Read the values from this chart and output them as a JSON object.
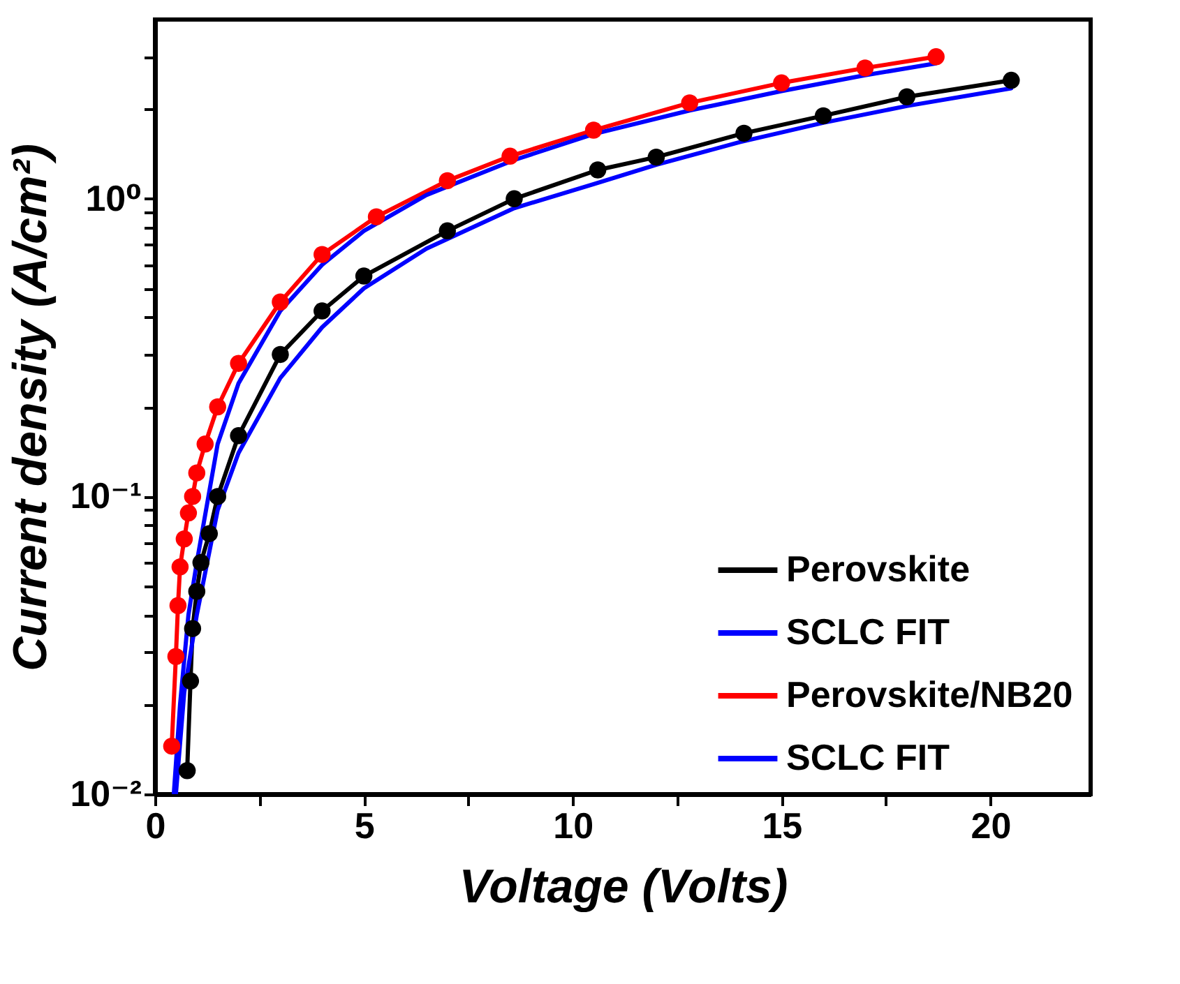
{
  "chart_data": {
    "type": "line",
    "xlabel": "Voltage (Volts)",
    "ylabel": "Current density (A/cm²)",
    "log": "y",
    "legend": "bottom right",
    "grid": false,
    "xlim": [
      0,
      22.4
    ],
    "xticks": [
      0,
      {
        "value": 2.5,
        "label": null
      },
      5,
      {
        "value": 7.5,
        "label": null
      },
      10,
      {
        "value": 12.5,
        "label": null
      },
      15,
      {
        "value": 17.5,
        "label": null
      },
      20
    ],
    "ylim": [
      0.01,
      4
    ],
    "yticks": [
      {
        "value": 0.01,
        "label": "10⁻²"
      },
      {
        "value": 0.02,
        "label": null
      },
      {
        "value": 0.03,
        "label": null
      },
      {
        "value": 0.04,
        "label": null
      },
      {
        "value": 0.05,
        "label": null
      },
      {
        "value": 0.06,
        "label": null
      },
      {
        "value": 0.07,
        "label": null
      },
      {
        "value": 0.08,
        "label": null
      },
      {
        "value": 0.09,
        "label": null
      },
      {
        "value": 0.1,
        "label": "10⁻¹"
      },
      {
        "value": 0.2,
        "label": null
      },
      {
        "value": 0.3,
        "label": null
      },
      {
        "value": 0.4,
        "label": null
      },
      {
        "value": 0.5,
        "label": null
      },
      {
        "value": 0.6,
        "label": null
      },
      {
        "value": 0.7,
        "label": null
      },
      {
        "value": 0.8,
        "label": null
      },
      {
        "value": 0.9,
        "label": null
      },
      {
        "value": 1,
        "label": "10⁰"
      },
      {
        "value": 2,
        "label": null
      },
      {
        "value": 3,
        "label": null
      }
    ],
    "series": [
      {
        "name": "Perovskite",
        "color": "#000000",
        "marker": "circle",
        "x": [
          0.77,
          0.85,
          0.9,
          1.0,
          1.1,
          1.3,
          1.5,
          2,
          3,
          4,
          5,
          7,
          8.6,
          10.6,
          12,
          14.1,
          16,
          18,
          20.5
        ],
        "values": [
          0.012,
          0.024,
          0.036,
          0.048,
          0.06,
          0.075,
          0.1,
          0.16,
          0.3,
          0.42,
          0.55,
          0.78,
          1.0,
          1.25,
          1.38,
          1.66,
          1.9,
          2.2,
          2.5
        ]
      },
      {
        "name": "SCLC FIT",
        "color": "#0000ff",
        "marker": "none",
        "x": [
          0.5,
          0.7,
          1.0,
          1.5,
          2,
          3,
          4,
          5,
          6.5,
          8.6,
          10.5,
          12,
          14,
          16,
          18,
          20.5
        ],
        "values": [
          0.01,
          0.022,
          0.04,
          0.09,
          0.14,
          0.25,
          0.37,
          0.5,
          0.68,
          0.93,
          1.12,
          1.3,
          1.55,
          1.8,
          2.05,
          2.35
        ]
      },
      {
        "name": "Perovskite/NB20",
        "color": "#ff0000",
        "marker": "circle",
        "x": [
          0.4,
          0.5,
          0.55,
          0.6,
          0.7,
          0.8,
          0.9,
          1.0,
          1.2,
          1.5,
          2,
          3,
          4,
          5.3,
          7,
          8.5,
          10.5,
          12.8,
          15,
          17,
          18.7
        ],
        "values": [
          0.0145,
          0.029,
          0.043,
          0.058,
          0.072,
          0.088,
          0.1,
          0.12,
          0.15,
          0.2,
          0.28,
          0.45,
          0.65,
          0.87,
          1.15,
          1.39,
          1.7,
          2.1,
          2.45,
          2.75,
          3.0
        ]
      },
      {
        "name": "SCLC FIT",
        "color": "#0000ff",
        "marker": "none",
        "x": [
          0.45,
          0.6,
          0.8,
          1.0,
          1.5,
          2,
          3,
          4,
          5,
          6.5,
          8.6,
          10.5,
          12.8,
          15,
          17,
          18.7
        ],
        "values": [
          0.01,
          0.02,
          0.04,
          0.06,
          0.15,
          0.24,
          0.42,
          0.6,
          0.78,
          1.03,
          1.35,
          1.65,
          1.98,
          2.3,
          2.6,
          2.85
        ]
      }
    ]
  }
}
